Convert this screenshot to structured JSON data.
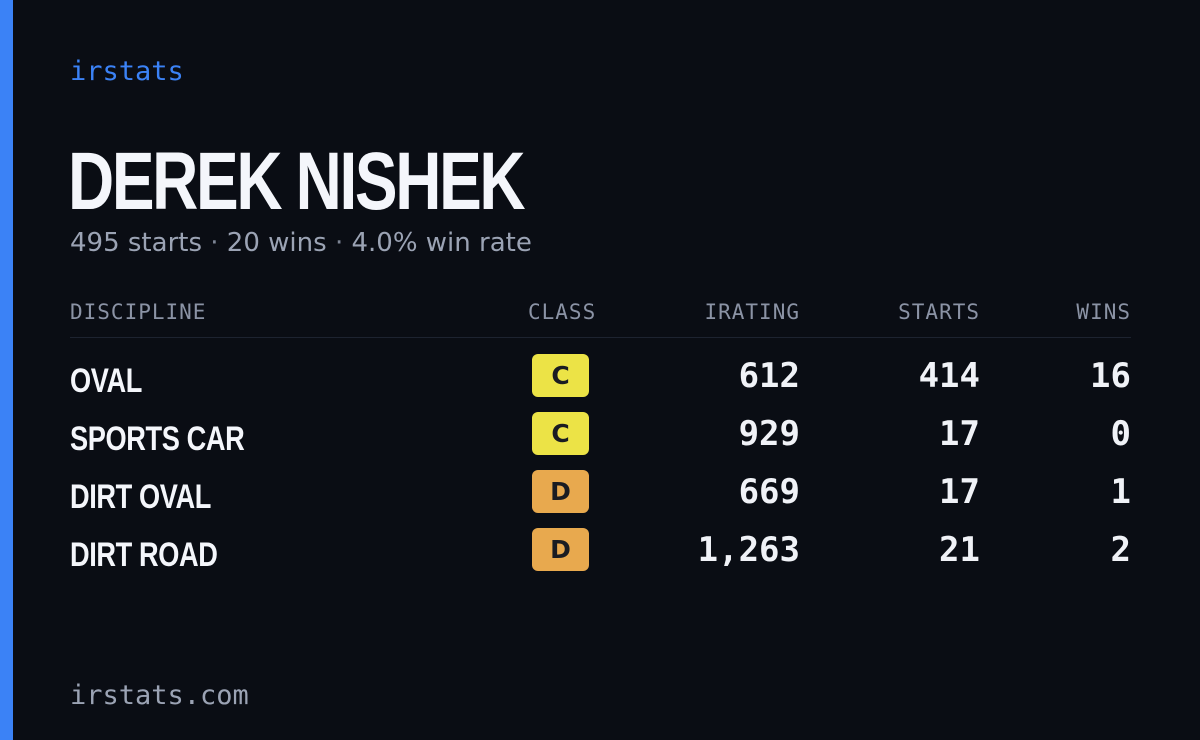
{
  "brand": "irstats",
  "driver": {
    "name": "DEREK NISHEK"
  },
  "summary": {
    "starts": "495 starts",
    "wins": "20 wins",
    "win_rate": "4.0% win rate",
    "separator": "·"
  },
  "table": {
    "headers": {
      "discipline": "DISCIPLINE",
      "class": "CLASS",
      "irating": "IRATING",
      "starts": "STARTS",
      "wins": "WINS"
    },
    "rows": [
      {
        "discipline": "OVAL",
        "class": "C",
        "class_color": "#ece346",
        "irating": "612",
        "starts": "414",
        "wins": "16"
      },
      {
        "discipline": "SPORTS CAR",
        "class": "C",
        "class_color": "#ece346",
        "irating": "929",
        "starts": "17",
        "wins": "0"
      },
      {
        "discipline": "DIRT OVAL",
        "class": "D",
        "class_color": "#e8a94e",
        "irating": "669",
        "starts": "17",
        "wins": "1"
      },
      {
        "discipline": "DIRT ROAD",
        "class": "D",
        "class_color": "#e8a94e",
        "irating": "1,263",
        "starts": "21",
        "wins": "2"
      }
    ]
  },
  "footer": "irstats.com",
  "colors": {
    "background": "#0a0d14",
    "accent": "#3b82f6",
    "class_c": "#ece346",
    "class_d": "#e8a94e"
  }
}
